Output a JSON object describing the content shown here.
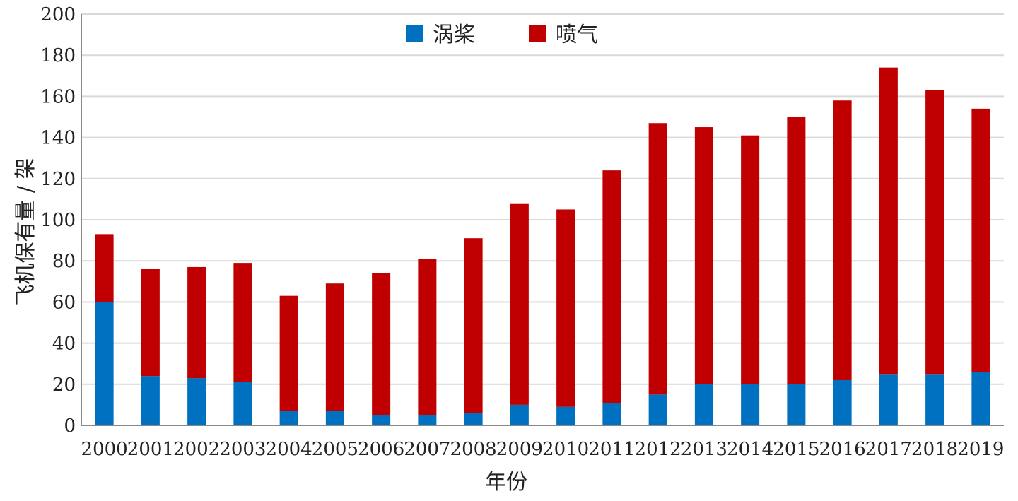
{
  "chart_data": {
    "type": "bar",
    "stacked": true,
    "categories": [
      "2000",
      "2001",
      "2002",
      "2003",
      "2004",
      "2005",
      "2006",
      "2007",
      "2008",
      "2009",
      "2010",
      "2011",
      "2012",
      "2013",
      "2014",
      "2015",
      "2016",
      "2017",
      "2018",
      "2019"
    ],
    "series": [
      {
        "name": "涡桨",
        "color": "#0070c0",
        "values": [
          60,
          24,
          23,
          21,
          7,
          7,
          5,
          5,
          6,
          10,
          9,
          11,
          15,
          20,
          20,
          20,
          22,
          25,
          25,
          26
        ]
      },
      {
        "name": "喷气",
        "color": "#c00000",
        "values": [
          33,
          52,
          54,
          58,
          56,
          62,
          69,
          76,
          85,
          98,
          96,
          113,
          132,
          125,
          121,
          130,
          136,
          149,
          138,
          128
        ]
      }
    ],
    "xlabel": "年份",
    "ylabel": "飞机保有量 / 架",
    "ylim": [
      0,
      200
    ],
    "yticks": [
      0,
      20,
      40,
      60,
      80,
      100,
      120,
      140,
      160,
      180,
      200
    ],
    "grid": true,
    "legend_position": "top-center"
  }
}
